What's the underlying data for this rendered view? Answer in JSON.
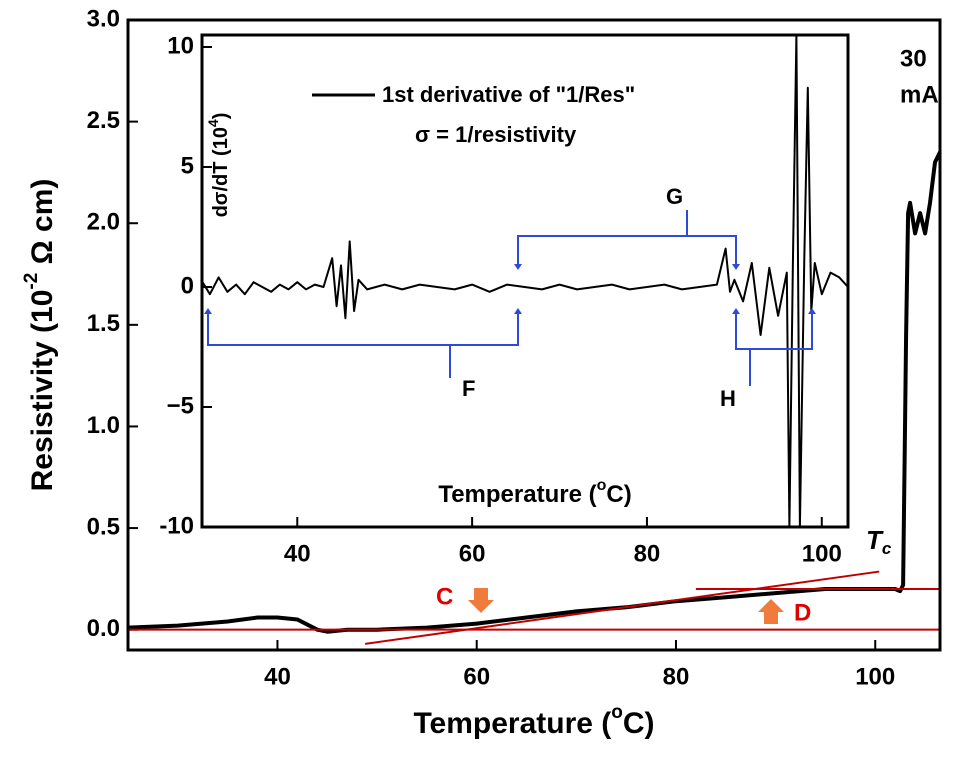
{
  "chart_data": [
    {
      "type": "line",
      "x_label": [
        "Temperature (",
        "o",
        "C)"
      ],
      "y_label": [
        "Resistivity (10",
        "-2",
        " Ω cm)"
      ],
      "annotations": {
        "current": [
          "30",
          "mA"
        ],
        "c": "C",
        "d": "D",
        "tc": [
          "T",
          "c"
        ]
      },
      "xlim": [
        25,
        106.5
      ],
      "ylim": [
        -0.1,
        3.0
      ],
      "xticks": [
        40,
        60,
        80,
        100
      ],
      "yticks": [
        {
          "value": 0,
          "label": "0.0"
        },
        0.5,
        {
          "value": 1,
          "label": "1.0"
        },
        1.5,
        {
          "value": 2,
          "label": "2.0"
        },
        2.5,
        {
          "value": 3,
          "label": "3.0"
        }
      ],
      "series": [
        {
          "color": "#000000",
          "x": [
            25,
            30,
            35,
            38,
            40,
            42,
            44,
            45,
            47,
            50,
            55,
            60,
            65,
            70,
            75,
            80,
            85,
            90,
            95,
            100,
            102,
            102.5,
            102.8,
            103,
            103.1,
            103.3,
            103.5,
            104,
            104.5,
            105,
            105.5,
            106,
            106.5
          ],
          "values": [
            0.01,
            0.02,
            0.04,
            0.06,
            0.06,
            0.05,
            0.0,
            -0.01,
            0.0,
            0.0,
            0.01,
            0.03,
            0.06,
            0.09,
            0.11,
            0.14,
            0.16,
            0.18,
            0.2,
            0.2,
            0.2,
            0.19,
            0.22,
            1.03,
            1.45,
            2.05,
            2.1,
            1.95,
            2.05,
            1.95,
            2.1,
            2.3,
            2.35
          ]
        }
      ],
      "fit_lines": {
        "color": "#c00000",
        "lines": [
          {
            "x": [
              25,
              106.5
            ],
            "y": [
              0,
              0
            ]
          },
          {
            "x": [
              82,
              106.5
            ],
            "y": [
              0.2,
              0.2
            ]
          },
          {
            "x": [
              48.8,
              100.4
            ],
            "y": [
              -0.07,
              0.286
            ]
          }
        ]
      }
    },
    {
      "type": "line",
      "legend": "1st derivative of \"1/Res\"",
      "note": "σ = 1/resistivity",
      "x_label": [
        "Temperature (",
        "o",
        "C)"
      ],
      "y_label": [
        "dσ/dT (10",
        "4",
        ")"
      ],
      "annotations": {
        "f": "F",
        "g": "G",
        "h": "H"
      },
      "xlim": [
        29.1,
        103
      ],
      "ylim": [
        -10,
        10.5
      ],
      "xticks": [
        40,
        60,
        80,
        100
      ],
      "yticks": [
        -10,
        {
          "value": -5,
          "label": "−5"
        },
        0,
        5,
        10
      ],
      "series": [
        {
          "color": "#000000",
          "x": [
            29,
            30,
            31,
            32,
            33,
            34,
            35,
            36,
            37,
            38,
            39,
            40,
            41,
            42,
            43,
            44,
            44.5,
            45,
            45.5,
            46,
            46.5,
            47,
            48,
            50,
            52,
            54,
            56,
            58,
            60,
            62,
            64,
            66,
            68,
            70,
            72,
            74,
            76,
            78,
            80,
            82,
            84,
            86,
            88,
            89,
            89.5,
            90,
            91,
            92,
            93,
            94,
            95,
            96,
            96.3,
            96.7,
            97.1,
            97.5,
            98,
            98.4,
            98.8,
            99.2,
            100,
            101,
            102,
            103
          ],
          "values": [
            0.3,
            -0.3,
            0.4,
            -0.2,
            0.1,
            -0.3,
            0.2,
            0,
            -0.2,
            0.1,
            -0.1,
            0.2,
            -0.1,
            0.1,
            0,
            1.2,
            -0.8,
            0.9,
            -1.3,
            1.9,
            -1.0,
            0.3,
            -0.1,
            0.1,
            -0.1,
            0.1,
            0,
            -0.1,
            0.1,
            -0.2,
            0.1,
            0,
            -0.1,
            0.1,
            -0.1,
            0,
            0.1,
            -0.1,
            0,
            0.1,
            -0.1,
            0,
            0.1,
            1.6,
            -0.2,
            0.3,
            -0.6,
            1.0,
            -2.0,
            0.8,
            -1.2,
            0.6,
            -10,
            1.0,
            10.5,
            -10,
            1.2,
            8.3,
            -1.0,
            1.0,
            -0.3,
            0.6,
            0.4,
            0
          ]
        }
      ]
    }
  ]
}
